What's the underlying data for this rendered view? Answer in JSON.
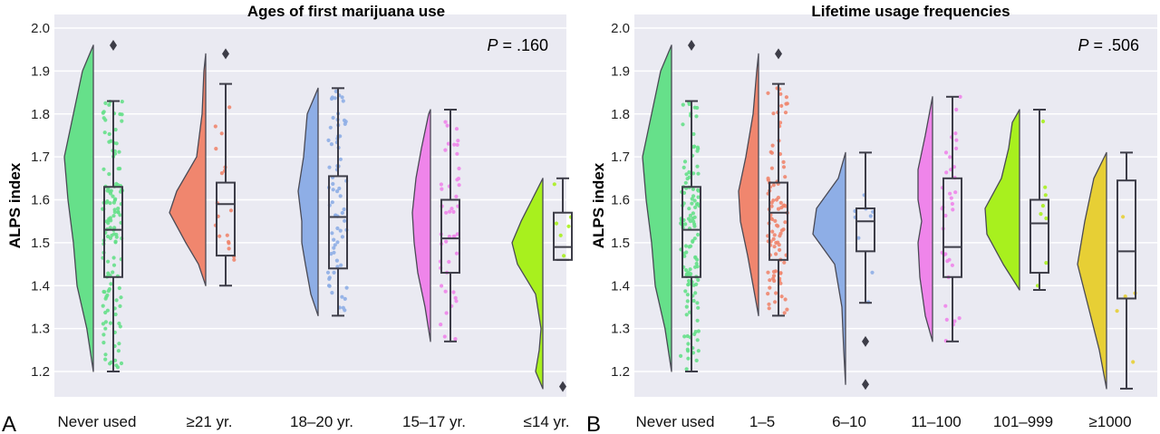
{
  "chart_data": [
    {
      "type": "raincloud",
      "panel_label": "A",
      "title": "Ages of first marijuana use",
      "ylabel": "ALPS index",
      "ylim": [
        1.15,
        2.0
      ],
      "yticks": [
        "1.2",
        "1.3",
        "1.4",
        "1.5",
        "1.6",
        "1.7",
        "1.8",
        "1.9",
        "2.0"
      ],
      "p_prefix": "P",
      "p_value": " = .160",
      "grid": true,
      "categories": [
        {
          "label": "Never used",
          "color": "#66e08a",
          "n": 130,
          "min": 1.2,
          "q1": 1.42,
          "median": 1.53,
          "q3": 1.63,
          "max": 1.83,
          "outliers": [
            1.96
          ],
          "kde": [
            [
              1.2,
              0.0
            ],
            [
              1.3,
              0.18
            ],
            [
              1.4,
              0.45
            ],
            [
              1.5,
              0.55
            ],
            [
              1.6,
              0.7
            ],
            [
              1.7,
              0.8
            ],
            [
              1.8,
              0.55
            ],
            [
              1.9,
              0.3
            ],
            [
              1.96,
              0.0
            ]
          ]
        },
        {
          "label": "≥21 yr.",
          "color": "#f0866e",
          "n": 18,
          "min": 1.4,
          "q1": 1.47,
          "median": 1.59,
          "q3": 1.64,
          "max": 1.87,
          "outliers": [
            1.94
          ],
          "kde": [
            [
              1.4,
              0.0
            ],
            [
              1.45,
              0.2
            ],
            [
              1.5,
              0.55
            ],
            [
              1.57,
              1.0
            ],
            [
              1.62,
              0.8
            ],
            [
              1.7,
              0.25
            ],
            [
              1.8,
              0.1
            ],
            [
              1.9,
              0.05
            ],
            [
              1.94,
              0.0
            ]
          ]
        },
        {
          "label": "18–20 yr.",
          "color": "#8eaee6",
          "n": 70,
          "min": 1.33,
          "q1": 1.44,
          "median": 1.56,
          "q3": 1.655,
          "max": 1.86,
          "outliers": [],
          "kde": [
            [
              1.33,
              0.0
            ],
            [
              1.38,
              0.2
            ],
            [
              1.45,
              0.35
            ],
            [
              1.5,
              0.45
            ],
            [
              1.55,
              0.45
            ],
            [
              1.62,
              0.55
            ],
            [
              1.7,
              0.4
            ],
            [
              1.8,
              0.3
            ],
            [
              1.86,
              0.0
            ]
          ]
        },
        {
          "label": "15–17 yr.",
          "color": "#ef85ea",
          "n": 45,
          "min": 1.27,
          "q1": 1.43,
          "median": 1.51,
          "q3": 1.6,
          "max": 1.81,
          "outliers": [],
          "kde": [
            [
              1.27,
              0.0
            ],
            [
              1.35,
              0.15
            ],
            [
              1.43,
              0.35
            ],
            [
              1.5,
              0.45
            ],
            [
              1.57,
              0.5
            ],
            [
              1.65,
              0.4
            ],
            [
              1.72,
              0.25
            ],
            [
              1.8,
              0.05
            ],
            [
              1.81,
              0.0
            ]
          ]
        },
        {
          "label": "≤14 yr.",
          "color": "#a8f01e",
          "n": 6,
          "min": 1.46,
          "q1": 1.46,
          "median": 1.49,
          "q3": 1.57,
          "max": 1.65,
          "outliers": [
            1.165
          ],
          "kde": [
            [
              1.16,
              0.0
            ],
            [
              1.2,
              0.2
            ],
            [
              1.25,
              0.1
            ],
            [
              1.3,
              0.05
            ],
            [
              1.38,
              0.2
            ],
            [
              1.45,
              0.7
            ],
            [
              1.5,
              0.85
            ],
            [
              1.55,
              0.6
            ],
            [
              1.6,
              0.3
            ],
            [
              1.65,
              0.0
            ]
          ]
        }
      ]
    },
    {
      "type": "raincloud",
      "panel_label": "B",
      "title": "Lifetime usage frequencies",
      "ylabel": "ALPS index",
      "ylim": [
        1.15,
        2.0
      ],
      "yticks": [
        "1.2",
        "1.3",
        "1.4",
        "1.5",
        "1.6",
        "1.7",
        "1.8",
        "1.9",
        "2.0"
      ],
      "p_prefix": "P",
      "p_value": " = .506",
      "grid": true,
      "categories": [
        {
          "label": "Never used",
          "color": "#66e08a",
          "n": 130,
          "min": 1.2,
          "q1": 1.42,
          "median": 1.53,
          "q3": 1.63,
          "max": 1.83,
          "outliers": [
            1.96
          ],
          "kde": [
            [
              1.2,
              0.0
            ],
            [
              1.3,
              0.18
            ],
            [
              1.4,
              0.45
            ],
            [
              1.5,
              0.55
            ],
            [
              1.6,
              0.7
            ],
            [
              1.7,
              0.8
            ],
            [
              1.8,
              0.55
            ],
            [
              1.9,
              0.3
            ],
            [
              1.96,
              0.0
            ]
          ]
        },
        {
          "label": "1–5",
          "color": "#f0866e",
          "n": 95,
          "min": 1.33,
          "q1": 1.46,
          "median": 1.57,
          "q3": 1.64,
          "max": 1.87,
          "outliers": [
            1.94
          ],
          "kde": [
            [
              1.33,
              0.0
            ],
            [
              1.4,
              0.15
            ],
            [
              1.47,
              0.3
            ],
            [
              1.55,
              0.5
            ],
            [
              1.62,
              0.55
            ],
            [
              1.7,
              0.35
            ],
            [
              1.8,
              0.15
            ],
            [
              1.9,
              0.05
            ],
            [
              1.94,
              0.0
            ]
          ]
        },
        {
          "label": "6–10",
          "color": "#8eaee6",
          "n": 9,
          "min": 1.36,
          "q1": 1.48,
          "median": 1.55,
          "q3": 1.58,
          "max": 1.71,
          "outliers": [
            1.27,
            1.17
          ],
          "kde": [
            [
              1.17,
              0.0
            ],
            [
              1.25,
              0.05
            ],
            [
              1.35,
              0.1
            ],
            [
              1.45,
              0.3
            ],
            [
              1.52,
              0.9
            ],
            [
              1.58,
              0.8
            ],
            [
              1.65,
              0.2
            ],
            [
              1.71,
              0.0
            ]
          ]
        },
        {
          "label": "11–100",
          "color": "#ef85ea",
          "n": 35,
          "min": 1.27,
          "q1": 1.42,
          "median": 1.49,
          "q3": 1.65,
          "max": 1.84,
          "outliers": [],
          "kde": [
            [
              1.27,
              0.0
            ],
            [
              1.33,
              0.2
            ],
            [
              1.42,
              0.35
            ],
            [
              1.5,
              0.4
            ],
            [
              1.55,
              0.3
            ],
            [
              1.6,
              0.4
            ],
            [
              1.67,
              0.4
            ],
            [
              1.75,
              0.2
            ],
            [
              1.84,
              0.0
            ]
          ]
        },
        {
          "label": "101–999",
          "color": "#a8f01e",
          "n": 8,
          "min": 1.39,
          "q1": 1.43,
          "median": 1.545,
          "q3": 1.6,
          "max": 1.81,
          "outliers": [],
          "kde": [
            [
              1.39,
              0.0
            ],
            [
              1.45,
              0.45
            ],
            [
              1.52,
              0.9
            ],
            [
              1.58,
              0.95
            ],
            [
              1.65,
              0.5
            ],
            [
              1.72,
              0.3
            ],
            [
              1.78,
              0.2
            ],
            [
              1.81,
              0.0
            ]
          ]
        },
        {
          "label": "≥1000",
          "color": "#e7cf35",
          "n": 5,
          "min": 1.16,
          "q1": 1.37,
          "median": 1.48,
          "q3": 1.645,
          "max": 1.71,
          "outliers": [],
          "kde": [
            [
              1.16,
              0.0
            ],
            [
              1.25,
              0.2
            ],
            [
              1.35,
              0.5
            ],
            [
              1.45,
              0.8
            ],
            [
              1.55,
              0.6
            ],
            [
              1.65,
              0.35
            ],
            [
              1.71,
              0.0
            ]
          ]
        }
      ]
    }
  ]
}
